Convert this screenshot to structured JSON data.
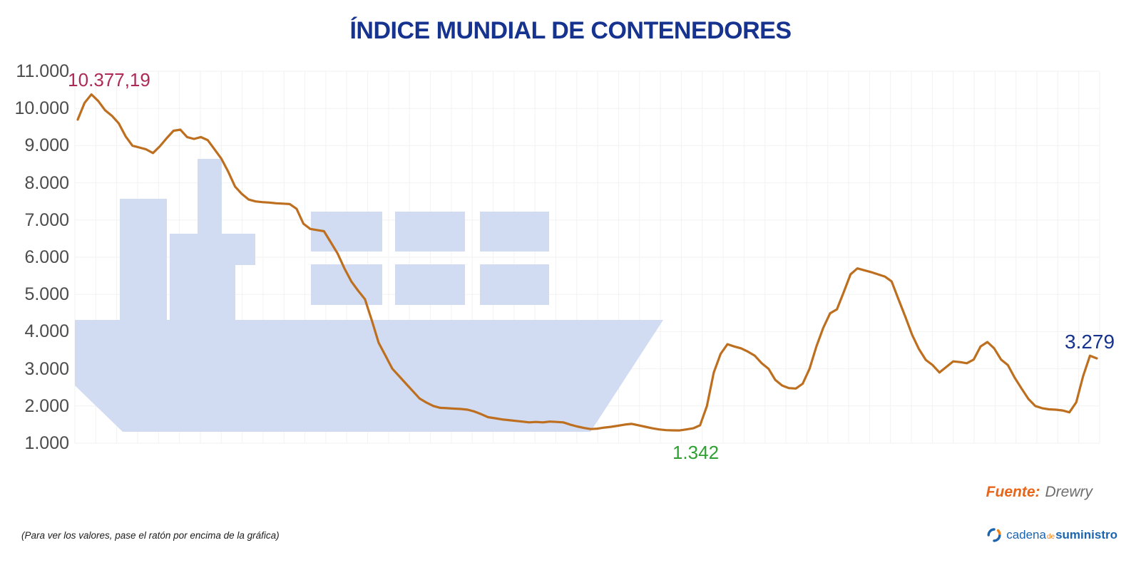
{
  "title": "ÍNDICE MUNDIAL DE CONTENEDORES",
  "footer": {
    "hover_note": "(Para ver los valores, pase el ratón por encima de la gráfica)",
    "source_label": "Fuente:",
    "source_value": "Drewry",
    "logo": {
      "part1": "cadena",
      "part2": "de",
      "part3": "suministro"
    }
  },
  "colors": {
    "title": "#16338f",
    "line": "#bd6f1f",
    "gridline": "#f2f2f2",
    "ship_watermark": "#d1dcf2",
    "axis_label": "#4c4c4c",
    "max_label": "#ad2a55",
    "min_label": "#2fa032",
    "last_label": "#16338f",
    "source_label": "#e8661a",
    "source_value": "#6d6d6d",
    "logo_blue": "#1a64b0",
    "logo_orange": "#f08019"
  },
  "chart_data": {
    "type": "line",
    "title": "ÍNDICE MUNDIAL DE CONTENEDORES",
    "xlabel": "",
    "ylabel": "",
    "ylim": [
      1000,
      11000
    ],
    "ytick_labels": [
      "11.000",
      "10.000",
      "9.000",
      "8.000",
      "7.000",
      "6.000",
      "5.000",
      "4.000",
      "3.000",
      "2.000",
      "1.000"
    ],
    "grid": true,
    "legend": "none",
    "watermark_icon": "container-ship",
    "series": [
      {
        "name": "Índice mundial de contenedores",
        "values": [
          9700,
          10150,
          10377.19,
          10200,
          9950,
          9800,
          9600,
          9250,
          9000,
          8950,
          8900,
          8800,
          8980,
          9200,
          9400,
          9430,
          9230,
          9180,
          9230,
          9150,
          8900,
          8650,
          8300,
          7900,
          7700,
          7550,
          7500,
          7480,
          7470,
          7450,
          7440,
          7430,
          7300,
          6900,
          6760,
          6730,
          6700,
          6400,
          6100,
          5700,
          5350,
          5100,
          4870,
          4300,
          3700,
          3350,
          3000,
          2800,
          2600,
          2400,
          2200,
          2090,
          2000,
          1950,
          1940,
          1930,
          1920,
          1900,
          1850,
          1780,
          1700,
          1670,
          1640,
          1620,
          1600,
          1580,
          1560,
          1570,
          1560,
          1580,
          1570,
          1560,
          1500,
          1450,
          1410,
          1380,
          1390,
          1420,
          1440,
          1470,
          1500,
          1520,
          1480,
          1440,
          1400,
          1370,
          1350,
          1345,
          1342,
          1370,
          1400,
          1480,
          2000,
          2900,
          3400,
          3660,
          3600,
          3550,
          3460,
          3350,
          3150,
          3000,
          2700,
          2550,
          2480,
          2470,
          2600,
          3000,
          3600,
          4100,
          4490,
          4600,
          5060,
          5540,
          5700,
          5650,
          5600,
          5540,
          5480,
          5350,
          4870,
          4400,
          3910,
          3530,
          3240,
          3100,
          2900,
          3050,
          3200,
          3180,
          3150,
          3250,
          3600,
          3720,
          3550,
          3250,
          3100,
          2760,
          2470,
          2190,
          2000,
          1940,
          1910,
          1900,
          1880,
          1830,
          2100,
          2800,
          3350,
          3279
        ]
      }
    ],
    "annotations": [
      {
        "id": "max",
        "label": "10.377,19",
        "value": 10377.19,
        "index": 2,
        "color": "#ad2a55",
        "position": "above"
      },
      {
        "id": "min",
        "label": "1.342",
        "value": 1342,
        "index": 88,
        "color": "#2fa032",
        "position": "below"
      },
      {
        "id": "last",
        "label": "3.279",
        "value": 3279,
        "index": 149,
        "color": "#16338f",
        "position": "above-right"
      }
    ]
  }
}
